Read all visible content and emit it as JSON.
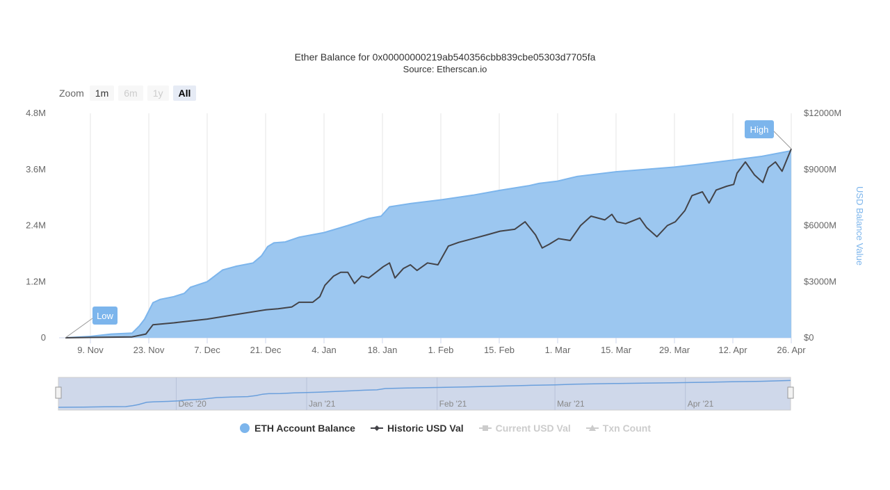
{
  "title": "Ether Balance for 0x00000000219ab540356cbb839cbe05303d7705fa",
  "subtitle": "Source: Etherscan.io",
  "zoom": {
    "label": "Zoom",
    "buttons": [
      {
        "label": "1m",
        "state": "enabled"
      },
      {
        "label": "6m",
        "state": "disabled"
      },
      {
        "label": "1y",
        "state": "disabled"
      },
      {
        "label": "All",
        "state": "selected"
      }
    ]
  },
  "chart_data": {
    "type": "area",
    "title": "Ether Balance for 0x00000000219ab540356cbb839cbe05303d7705fa",
    "subtitle": "Source: Etherscan.io",
    "x_unit": "days since 3 Nov 2020",
    "xlim": [
      0,
      174
    ],
    "x_ticks": [
      {
        "label": "9. Nov",
        "x": 6
      },
      {
        "label": "23. Nov",
        "x": 20
      },
      {
        "label": "7. Dec",
        "x": 34
      },
      {
        "label": "21. Dec",
        "x": 48
      },
      {
        "label": "4. Jan",
        "x": 62
      },
      {
        "label": "18. Jan",
        "x": 76
      },
      {
        "label": "1. Feb",
        "x": 90
      },
      {
        "label": "15. Feb",
        "x": 104
      },
      {
        "label": "1. Mar",
        "x": 118
      },
      {
        "label": "15. Mar",
        "x": 132
      },
      {
        "label": "29. Mar",
        "x": 146
      },
      {
        "label": "12. Apr",
        "x": 160
      },
      {
        "label": "26. Apr",
        "x": 174
      }
    ],
    "y_left": {
      "ylim": [
        0,
        4.8
      ],
      "ticks": [
        {
          "label": "0",
          "v": 0
        },
        {
          "label": "1.2M",
          "v": 1.2
        },
        {
          "label": "2.4M",
          "v": 2.4
        },
        {
          "label": "3.6M",
          "v": 3.6
        },
        {
          "label": "4.8M",
          "v": 4.8
        }
      ]
    },
    "y_right": {
      "title": "USD Balance Value",
      "ylim": [
        0,
        12000
      ],
      "ticks": [
        {
          "label": "$0",
          "v": 0
        },
        {
          "label": "$3000M",
          "v": 3000
        },
        {
          "label": "$6000M",
          "v": 6000
        },
        {
          "label": "$9000M",
          "v": 9000
        },
        {
          "label": "$12000M",
          "v": 12000
        }
      ]
    },
    "series": [
      {
        "name": "ETH Account Balance",
        "unit": "M ETH",
        "axis": "left",
        "color": "#7cb5ec",
        "visible": true,
        "points": [
          [
            0,
            0
          ],
          [
            6,
            0.03
          ],
          [
            11,
            0.08
          ],
          [
            16,
            0.1
          ],
          [
            17.7,
            0.25
          ],
          [
            19,
            0.4
          ],
          [
            21,
            0.75
          ],
          [
            22.7,
            0.82
          ],
          [
            26,
            0.88
          ],
          [
            28.5,
            0.95
          ],
          [
            30,
            1.08
          ],
          [
            34,
            1.2
          ],
          [
            37.7,
            1.45
          ],
          [
            41,
            1.53
          ],
          [
            45,
            1.6
          ],
          [
            47,
            1.75
          ],
          [
            48.5,
            1.95
          ],
          [
            50,
            2.03
          ],
          [
            52.7,
            2.05
          ],
          [
            56,
            2.15
          ],
          [
            62,
            2.25
          ],
          [
            67.7,
            2.4
          ],
          [
            72.7,
            2.55
          ],
          [
            75.7,
            2.6
          ],
          [
            77.7,
            2.8
          ],
          [
            82.7,
            2.87
          ],
          [
            90,
            2.95
          ],
          [
            97.7,
            3.05
          ],
          [
            104,
            3.15
          ],
          [
            111,
            3.25
          ],
          [
            113.5,
            3.3
          ],
          [
            118,
            3.35
          ],
          [
            122.7,
            3.45
          ],
          [
            132,
            3.55
          ],
          [
            139,
            3.6
          ],
          [
            146,
            3.65
          ],
          [
            151,
            3.7
          ],
          [
            160,
            3.8
          ],
          [
            167,
            3.88
          ],
          [
            174,
            4.0
          ]
        ]
      },
      {
        "name": "Historic USD Val",
        "unit": "$M",
        "axis": "right",
        "color": "#434348",
        "visible": true,
        "points": [
          [
            0,
            0
          ],
          [
            16,
            50
          ],
          [
            19.3,
            200
          ],
          [
            21,
            700
          ],
          [
            26,
            800
          ],
          [
            34,
            1000
          ],
          [
            41,
            1250
          ],
          [
            48.2,
            1500
          ],
          [
            51,
            1550
          ],
          [
            54.3,
            1650
          ],
          [
            56,
            1900
          ],
          [
            59.3,
            1900
          ],
          [
            61,
            2200
          ],
          [
            62.2,
            2800
          ],
          [
            64.3,
            3300
          ],
          [
            66,
            3500
          ],
          [
            67.7,
            3500
          ],
          [
            69.3,
            2900
          ],
          [
            71,
            3300
          ],
          [
            72.7,
            3200
          ],
          [
            76.2,
            3800
          ],
          [
            77.7,
            4000
          ],
          [
            79,
            3200
          ],
          [
            81,
            3700
          ],
          [
            82.7,
            3900
          ],
          [
            84.3,
            3600
          ],
          [
            86.8,
            4000
          ],
          [
            89.3,
            3900
          ],
          [
            91.8,
            4900
          ],
          [
            94.3,
            5100
          ],
          [
            97.7,
            5300
          ],
          [
            101,
            5500
          ],
          [
            104.2,
            5700
          ],
          [
            107.7,
            5800
          ],
          [
            110.2,
            6200
          ],
          [
            112.7,
            5500
          ],
          [
            114.3,
            4800
          ],
          [
            116,
            5000
          ],
          [
            118.2,
            5300
          ],
          [
            121,
            5200
          ],
          [
            123.5,
            6000
          ],
          [
            126,
            6500
          ],
          [
            129.3,
            6300
          ],
          [
            131,
            6600
          ],
          [
            132.2,
            6200
          ],
          [
            134.3,
            6100
          ],
          [
            137.7,
            6400
          ],
          [
            139.3,
            5900
          ],
          [
            141.8,
            5400
          ],
          [
            144.3,
            6000
          ],
          [
            146.2,
            6200
          ],
          [
            148.5,
            6800
          ],
          [
            150.2,
            7600
          ],
          [
            152.7,
            7800
          ],
          [
            154.3,
            7200
          ],
          [
            156,
            7900
          ],
          [
            158.5,
            8100
          ],
          [
            160.2,
            8200
          ],
          [
            161,
            8800
          ],
          [
            163,
            9400
          ],
          [
            165.2,
            8700
          ],
          [
            167.2,
            8300
          ],
          [
            168.5,
            9100
          ],
          [
            170.2,
            9400
          ],
          [
            171.8,
            8900
          ],
          [
            174,
            10100
          ]
        ]
      },
      {
        "name": "Current USD Val",
        "visible": false,
        "color": "#cccccc"
      },
      {
        "name": "Txn Count",
        "visible": false,
        "color": "#cccccc"
      }
    ],
    "annotations": [
      {
        "label": "Low",
        "series": "ETH Account Balance",
        "x": 0
      },
      {
        "label": "High",
        "series": "Historic USD Val",
        "x": 174
      }
    ],
    "navigator": {
      "labels": [
        {
          "label": "Dec '20",
          "x": 28
        },
        {
          "label": "Jan '21",
          "x": 59
        },
        {
          "label": "Feb '21",
          "x": 90
        },
        {
          "label": "Mar '21",
          "x": 118
        },
        {
          "label": "Apr '21",
          "x": 149
        }
      ]
    },
    "legend_position": "bottom",
    "grid": "vertical"
  }
}
